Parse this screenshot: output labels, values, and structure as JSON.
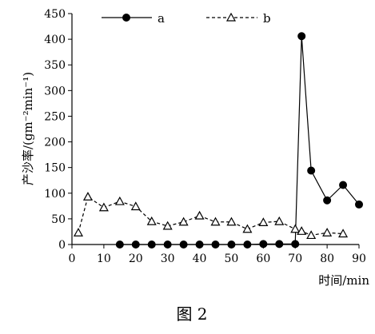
{
  "chart_data": {
    "type": "line",
    "xlabel": "时间/min",
    "ylabel": "产沙率/(gm⁻²min⁻¹)",
    "xlim": [
      0,
      90
    ],
    "ylim": [
      0,
      450
    ],
    "x_ticks": [
      0,
      10,
      20,
      30,
      40,
      50,
      60,
      70,
      80,
      90
    ],
    "y_ticks": [
      0,
      50,
      100,
      150,
      200,
      250,
      300,
      350,
      400,
      450
    ],
    "grid": false,
    "legend_position": "top",
    "series": [
      {
        "name": "a",
        "marker": "filled-circle",
        "line": "solid",
        "x": [
          15,
          20,
          25,
          30,
          35,
          40,
          45,
          50,
          55,
          60,
          65,
          70,
          72,
          75,
          80,
          85,
          90
        ],
        "y": [
          0,
          0,
          0,
          0,
          0,
          0,
          0,
          0,
          0,
          1,
          1,
          1,
          406,
          144,
          86,
          116,
          78
        ]
      },
      {
        "name": "b",
        "marker": "open-triangle",
        "line": "dashed",
        "x": [
          2,
          5,
          10,
          15,
          20,
          25,
          30,
          35,
          40,
          45,
          50,
          55,
          60,
          65,
          70,
          72,
          75,
          80,
          85
        ],
        "y": [
          23,
          93,
          72,
          84,
          74,
          45,
          36,
          44,
          56,
          44,
          44,
          30,
          43,
          45,
          30,
          26,
          18,
          23,
          21
        ]
      }
    ]
  },
  "caption": "图 2",
  "colors": {
    "line": "#000000",
    "background": "#ffffff"
  }
}
